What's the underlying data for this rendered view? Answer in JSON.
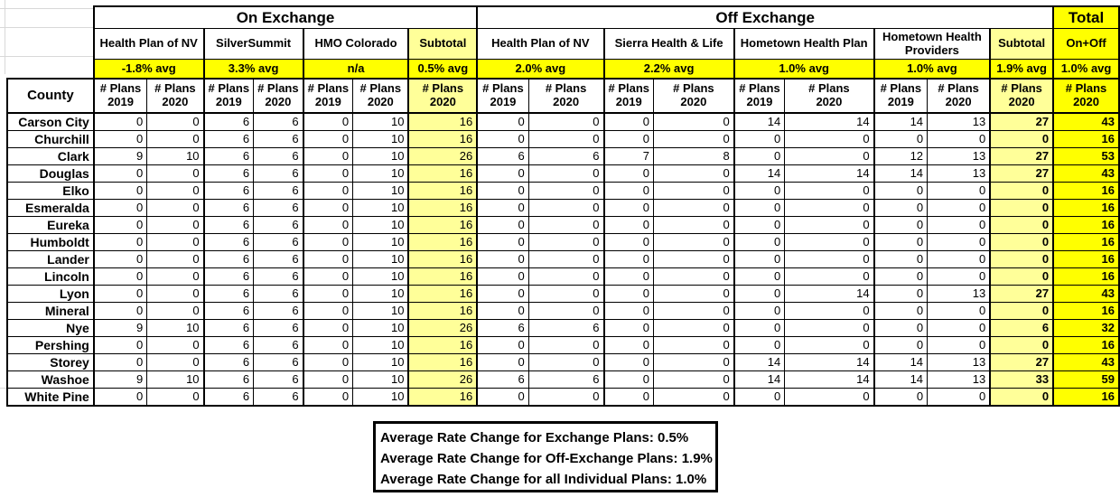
{
  "colors": {
    "highlight_bright": "#FFFF00",
    "highlight_pale": "#FFFF99",
    "border": "#000000",
    "gridline": "#D8D8D8"
  },
  "table": {
    "groups": {
      "on": "On Exchange",
      "off": "Off Exchange",
      "total": "Total"
    },
    "on_carriers": [
      {
        "name": "Health Plan of NV",
        "avg": "-1.8% avg"
      },
      {
        "name": "SilverSummit",
        "avg": "3.3% avg"
      },
      {
        "name": "HMO Colorado",
        "avg": "n/a"
      }
    ],
    "on_subtotal": {
      "name": "Subtotal",
      "avg": "0.5% avg"
    },
    "off_carriers": [
      {
        "name": "Health Plan of NV",
        "avg": "2.0% avg"
      },
      {
        "name": "Sierra Health & Life",
        "avg": "2.2% avg"
      },
      {
        "name": "Hometown Health Plan",
        "avg": "1.0% avg"
      },
      {
        "name": "Hometown Health Providers",
        "avg": "1.0% avg"
      }
    ],
    "off_subtotal": {
      "name": "Subtotal",
      "avg": "1.9% avg"
    },
    "total": {
      "label": "On+Off",
      "avg": "1.0% avg"
    },
    "county_header": "County",
    "plans_label": "# Plans",
    "year_2019": "2019",
    "year_2020": "2020",
    "rows": [
      {
        "county": "Carson City",
        "values": [
          0,
          0,
          6,
          6,
          0,
          10,
          16,
          0,
          0,
          0,
          0,
          14,
          14,
          14,
          13,
          27,
          43
        ]
      },
      {
        "county": "Churchill",
        "values": [
          0,
          0,
          6,
          6,
          0,
          10,
          16,
          0,
          0,
          0,
          0,
          0,
          0,
          0,
          0,
          0,
          16
        ]
      },
      {
        "county": "Clark",
        "values": [
          9,
          10,
          6,
          6,
          0,
          10,
          26,
          6,
          6,
          7,
          8,
          0,
          0,
          12,
          13,
          27,
          53
        ]
      },
      {
        "county": "Douglas",
        "values": [
          0,
          0,
          6,
          6,
          0,
          10,
          16,
          0,
          0,
          0,
          0,
          14,
          14,
          14,
          13,
          27,
          43
        ]
      },
      {
        "county": "Elko",
        "values": [
          0,
          0,
          6,
          6,
          0,
          10,
          16,
          0,
          0,
          0,
          0,
          0,
          0,
          0,
          0,
          0,
          16
        ]
      },
      {
        "county": "Esmeralda",
        "values": [
          0,
          0,
          6,
          6,
          0,
          10,
          16,
          0,
          0,
          0,
          0,
          0,
          0,
          0,
          0,
          0,
          16
        ]
      },
      {
        "county": "Eureka",
        "values": [
          0,
          0,
          6,
          6,
          0,
          10,
          16,
          0,
          0,
          0,
          0,
          0,
          0,
          0,
          0,
          0,
          16
        ]
      },
      {
        "county": "Humboldt",
        "values": [
          0,
          0,
          6,
          6,
          0,
          10,
          16,
          0,
          0,
          0,
          0,
          0,
          0,
          0,
          0,
          0,
          16
        ]
      },
      {
        "county": "Lander",
        "values": [
          0,
          0,
          6,
          6,
          0,
          10,
          16,
          0,
          0,
          0,
          0,
          0,
          0,
          0,
          0,
          0,
          16
        ]
      },
      {
        "county": "Lincoln",
        "values": [
          0,
          0,
          6,
          6,
          0,
          10,
          16,
          0,
          0,
          0,
          0,
          0,
          0,
          0,
          0,
          0,
          16
        ]
      },
      {
        "county": "Lyon",
        "values": [
          0,
          0,
          6,
          6,
          0,
          10,
          16,
          0,
          0,
          0,
          0,
          0,
          14,
          0,
          13,
          27,
          43
        ]
      },
      {
        "county": "Mineral",
        "values": [
          0,
          0,
          6,
          6,
          0,
          10,
          16,
          0,
          0,
          0,
          0,
          0,
          0,
          0,
          0,
          0,
          16
        ]
      },
      {
        "county": "Nye",
        "values": [
          9,
          10,
          6,
          6,
          0,
          10,
          26,
          6,
          6,
          0,
          0,
          0,
          0,
          0,
          0,
          6,
          32
        ]
      },
      {
        "county": "Pershing",
        "values": [
          0,
          0,
          6,
          6,
          0,
          10,
          16,
          0,
          0,
          0,
          0,
          0,
          0,
          0,
          0,
          0,
          16
        ]
      },
      {
        "county": "Storey",
        "values": [
          0,
          0,
          6,
          6,
          0,
          10,
          16,
          0,
          0,
          0,
          0,
          14,
          14,
          14,
          13,
          27,
          43
        ]
      },
      {
        "county": "Washoe",
        "values": [
          9,
          10,
          6,
          6,
          0,
          10,
          26,
          6,
          6,
          0,
          0,
          14,
          14,
          14,
          13,
          33,
          59
        ]
      },
      {
        "county": "White Pine",
        "values": [
          0,
          0,
          6,
          6,
          0,
          10,
          16,
          0,
          0,
          0,
          0,
          0,
          0,
          0,
          0,
          0,
          16
        ]
      }
    ]
  },
  "summary_box": {
    "lines": [
      "Average Rate Change for Exchange Plans: 0.5%",
      "Average Rate Change for Off-Exchange Plans: 1.9%",
      "Average Rate Change for all Individual Plans: 1.0%"
    ]
  }
}
